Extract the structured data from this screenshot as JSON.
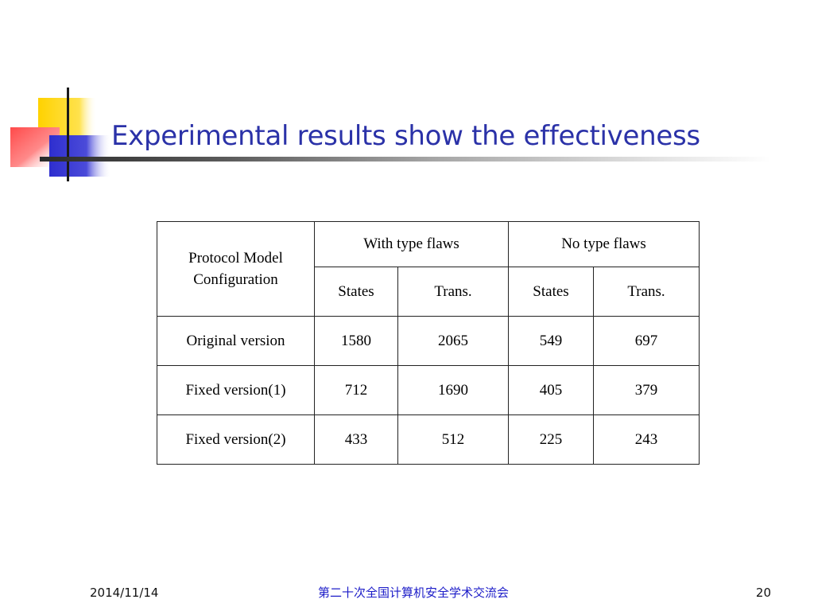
{
  "slide": {
    "title": "Experimental results show the effectiveness"
  },
  "table": {
    "header_row1": {
      "protocol_model_line1": "Protocol Model",
      "protocol_model_line2": "Configuration",
      "group_with_flaws": "With type flaws",
      "group_no_flaws": "No type flaws"
    },
    "header_row2": [
      "States",
      "Trans.",
      "States",
      "Trans."
    ],
    "rows": [
      [
        "Original version",
        "1580",
        "2065",
        "549",
        "697"
      ],
      [
        "Fixed version(1)",
        "712",
        "1690",
        "405",
        "379"
      ],
      [
        "Fixed version(2)",
        "433",
        "512",
        "225",
        "243"
      ]
    ]
  },
  "footer": {
    "date": "2014/11/14",
    "conference": "第二十次全国计算机安全学术交流会",
    "page_number": "20"
  },
  "colors": {
    "title": "#2b32a8",
    "conference": "#1c1cc8",
    "deco_yellow": "#ffd200",
    "deco_red": "#ff4a4a",
    "deco_blue": "#2e2ecf"
  }
}
